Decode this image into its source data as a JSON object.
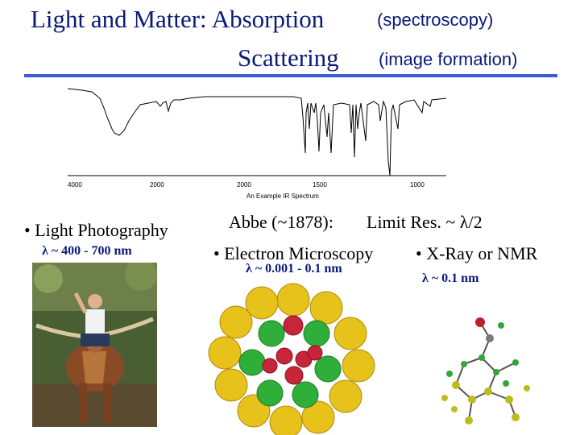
{
  "title": {
    "line1_main": "Light and Matter: Absorption",
    "line1_note": "(spectroscopy)",
    "line2_main": "Scattering",
    "line2_note": "(image formation)"
  },
  "spectrum": {
    "ticks": [
      "4000",
      "2000",
      "2000",
      "1500",
      "1000"
    ],
    "caption": "An Example IR Spectrum"
  },
  "left": {
    "bullet": "• Light Photography",
    "lambda": "λ ~ 400 - 700 nm"
  },
  "center": {
    "abbe_prefix": "Abbe (~1878):",
    "abbe_limit": "Limit Res. ~ λ/2",
    "bullet": "• Electron Microscopy",
    "lambda": "λ ~ 0.001 - 0.1 nm"
  },
  "right": {
    "bullet": "• X-Ray or NMR",
    "lambda": "λ ~ 0.1 nm"
  },
  "colors": {
    "title": "#0a1a7a",
    "rule": "#3a5ae0",
    "protein_yellow": "#e6c21a",
    "protein_green": "#2fae3a",
    "protein_red": "#c7263a"
  }
}
